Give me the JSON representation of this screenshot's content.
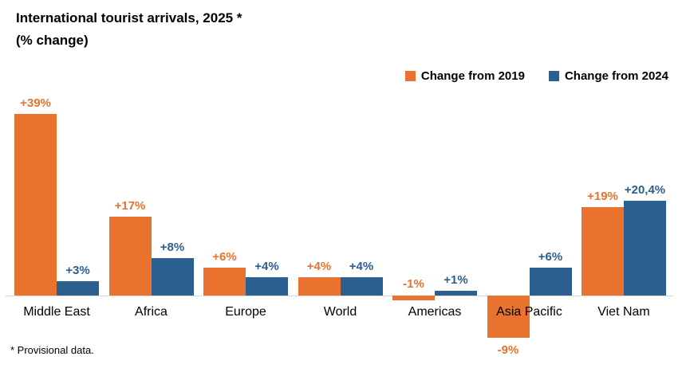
{
  "chart_data": {
    "type": "bar",
    "title": "International tourist arrivals, 2025 *",
    "subtitle": "(% change)",
    "footnote": "* Provisional data.",
    "categories": [
      "Middle East",
      "Africa",
      "Europe",
      "World",
      "Americas",
      "Asia Pacific",
      "Viet Nam"
    ],
    "series": [
      {
        "name": "Change from 2019",
        "color": "#E8722E",
        "values": [
          39,
          17,
          6,
          4,
          -1,
          -9,
          19
        ],
        "labels": [
          "+39%",
          "+17%",
          "+6%",
          "+4%",
          "-1%",
          "-9%",
          "+19%"
        ]
      },
      {
        "name": "Change from 2024",
        "color": "#2A5F8F",
        "values": [
          3,
          8,
          4,
          4,
          1,
          6,
          20.4
        ],
        "labels": [
          "+3%",
          "+8%",
          "+4%",
          "+4%",
          "+1%",
          "+6%",
          "+20,4%"
        ]
      }
    ],
    "ylim": [
      -10,
      42
    ],
    "grid": false,
    "legend_position": "top-right",
    "axis_line_color": "#D9D9D9",
    "background_color": "#FFFFFF"
  }
}
